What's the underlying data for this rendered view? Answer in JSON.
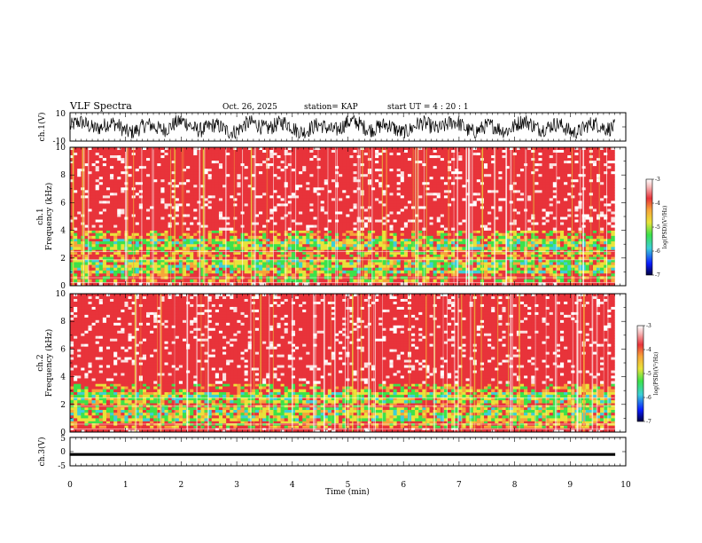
{
  "header": {
    "title": "VLF Spectra",
    "date": "Oct. 26, 2025",
    "station": "station= KAP",
    "start": "start  UT =   4 : 20 : 1"
  },
  "chart_data": [
    {
      "type": "line",
      "name": "ch1-waveform",
      "ylabel": "ch.1(V)",
      "ylim": [
        -10,
        10
      ],
      "yticks": [
        "10",
        "-10"
      ],
      "x_range_min": [
        0,
        9.8
      ],
      "trace_amplitude_v": [
        -8,
        8
      ]
    },
    {
      "type": "heatmap",
      "name": "ch1-spectrogram",
      "ylabel_top": "ch.1",
      "ylabel": "Frequency (kHz)",
      "ylim": [
        0,
        10
      ],
      "yticks": [
        "0",
        "2",
        "4",
        "6",
        "8",
        "10"
      ],
      "x_range_min": [
        0,
        9.8
      ],
      "bands_khz": [
        {
          "from": 0,
          "to": 0.25,
          "level": "background"
        },
        {
          "from": 0.25,
          "to": 0.9,
          "level": "mixed"
        },
        {
          "from": 0.9,
          "to": 1.9,
          "level": "strong"
        },
        {
          "from": 1.9,
          "to": 2.6,
          "level": "mixed"
        },
        {
          "from": 2.6,
          "to": 3.4,
          "level": "strong"
        },
        {
          "from": 3.4,
          "to": 4.0,
          "level": "mixed"
        },
        {
          "from": 4.0,
          "to": 10,
          "level": "background"
        }
      ],
      "colorbar": {
        "ticks": [
          "-3",
          "-4",
          "-5",
          "-6",
          "-7"
        ],
        "label": "log(PSD)(V²/Hz)",
        "range": [
          -7,
          -3
        ]
      }
    },
    {
      "type": "heatmap",
      "name": "ch2-spectrogram",
      "ylabel_top": "ch.2",
      "ylabel": "Frequency (kHz)",
      "ylim": [
        0,
        10
      ],
      "yticks": [
        "0",
        "2",
        "4",
        "6",
        "8",
        "10"
      ],
      "x_range_min": [
        0,
        9.8
      ],
      "bands_khz": [
        {
          "from": 0,
          "to": 0.3,
          "level": "background"
        },
        {
          "from": 0.3,
          "to": 0.8,
          "level": "mixed"
        },
        {
          "from": 0.8,
          "to": 1.8,
          "level": "strong"
        },
        {
          "from": 1.8,
          "to": 2.1,
          "level": "mixed"
        },
        {
          "from": 2.1,
          "to": 2.9,
          "level": "strong"
        },
        {
          "from": 2.9,
          "to": 3.5,
          "level": "mixed"
        },
        {
          "from": 3.5,
          "to": 10,
          "level": "background"
        }
      ],
      "colorbar": {
        "ticks": [
          "-3",
          "-4",
          "-5",
          "-6",
          "-7"
        ],
        "label": "log(PSD)(V²/Hz)",
        "range": [
          -7,
          -3
        ]
      }
    },
    {
      "type": "line",
      "name": "ch3-waveform",
      "ylabel": "ch.3(V)",
      "ylim": [
        -5,
        5
      ],
      "yticks": [
        "5",
        "0",
        "-5"
      ],
      "x_range_min": [
        0,
        9.8
      ],
      "trace_level_v": [
        -1.5,
        -0.5
      ]
    }
  ],
  "xaxis": {
    "label": "Time (min)",
    "ticks": [
      "0",
      "1",
      "2",
      "3",
      "4",
      "5",
      "6",
      "7",
      "8",
      "9",
      "10"
    ],
    "range": [
      0,
      10
    ]
  },
  "colors": {
    "background_red": "#e8333a",
    "light_pink": "#fbe0e0",
    "white": "#ffffff",
    "orange": "#f7a43a",
    "yellow": "#e9e33a",
    "green": "#3ce24a",
    "cyan": "#3ccfd8",
    "blue": "#1a3cff",
    "trace": "#000000"
  }
}
